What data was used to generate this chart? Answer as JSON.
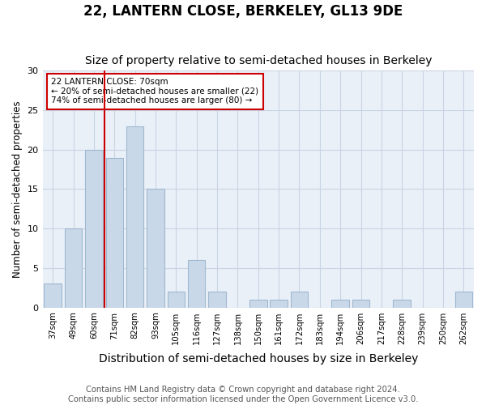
{
  "title": "22, LANTERN CLOSE, BERKELEY, GL13 9DE",
  "subtitle": "Size of property relative to semi-detached houses in Berkeley",
  "xlabel": "Distribution of semi-detached houses by size in Berkeley",
  "ylabel": "Number of semi-detached properties",
  "categories": [
    "37sqm",
    "49sqm",
    "60sqm",
    "71sqm",
    "82sqm",
    "93sqm",
    "105sqm",
    "116sqm",
    "127sqm",
    "138sqm",
    "150sqm",
    "161sqm",
    "172sqm",
    "183sqm",
    "194sqm",
    "206sqm",
    "217sqm",
    "228sqm",
    "239sqm",
    "250sqm",
    "262sqm"
  ],
  "values": [
    3,
    10,
    20,
    19,
    23,
    15,
    2,
    6,
    2,
    0,
    1,
    1,
    2,
    0,
    1,
    1,
    0,
    1,
    0,
    0,
    2
  ],
  "bar_color": "#c8d8e8",
  "bar_edge_color": "#a0b8d0",
  "property_line_x": 2.5,
  "annotation_title": "22 LANTERN CLOSE: 70sqm",
  "annotation_line1": "← 20% of semi-detached houses are smaller (22)",
  "annotation_line2": "74% of semi-detached houses are larger (80) →",
  "annotation_box_color": "#ffffff",
  "annotation_box_edge_color": "#cc0000",
  "property_line_color": "#cc0000",
  "ylim": [
    0,
    30
  ],
  "yticks": [
    0,
    5,
    10,
    15,
    20,
    25,
    30
  ],
  "background_color": "#ffffff",
  "axes_bg_color": "#eaf0f8",
  "footer_line1": "Contains HM Land Registry data © Crown copyright and database right 2024.",
  "footer_line2": "Contains public sector information licensed under the Open Government Licence v3.0.",
  "grid_color": "#c8d4e4",
  "title_fontsize": 12,
  "subtitle_fontsize": 10,
  "xlabel_fontsize": 10,
  "ylabel_fontsize": 8.5,
  "footer_fontsize": 7.2
}
